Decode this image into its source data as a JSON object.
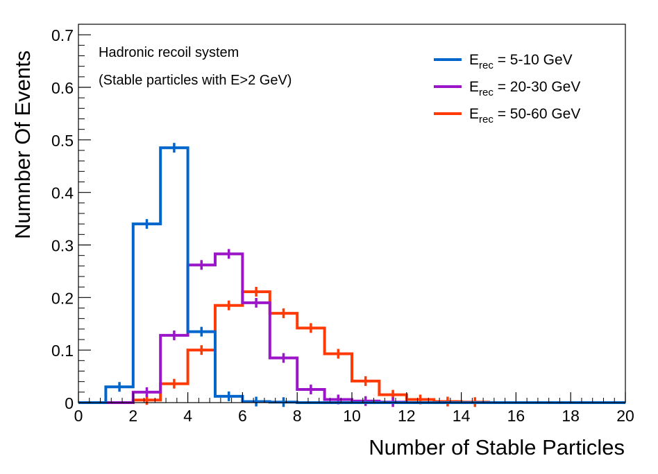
{
  "chart_data": {
    "type": "histogram-step",
    "xlabel": "Number of Stable Particles",
    "ylabel": "Numnber Of Events",
    "xlim": [
      0,
      20
    ],
    "ylim": [
      0,
      0.72
    ],
    "x_ticks": [
      0,
      2,
      4,
      6,
      8,
      10,
      12,
      14,
      16,
      18,
      20
    ],
    "y_ticks": [
      0,
      0.1,
      0.2,
      0.3,
      0.4,
      0.5,
      0.6,
      0.7
    ],
    "y_tick_labels": [
      "0",
      "0.1",
      "0.2",
      "0.3",
      "0.4",
      "0.5",
      "0.6",
      "0.7"
    ],
    "bin_edges": [
      0,
      1,
      2,
      3,
      4,
      5,
      6,
      7,
      8,
      9,
      10,
      11,
      12,
      13,
      14,
      15,
      16,
      17,
      18,
      19,
      20
    ],
    "annotations": [
      "Hadronic recoil system",
      "(Stable particles with E>2 GeV)"
    ],
    "legend_position": "top-right",
    "series": [
      {
        "name": "E_rec = 5-10 GeV",
        "label_main": "E",
        "label_sub": "rec",
        "label_rest": " = 5-10 GeV",
        "color": "#0066cc",
        "values": [
          0,
          0.03,
          0.34,
          0.485,
          0.135,
          0.012,
          0.002,
          0.001,
          0,
          0,
          0,
          0,
          0,
          0,
          0,
          0,
          0,
          0,
          0,
          0
        ],
        "errors": [
          0,
          0.003,
          0.008,
          0.01,
          0.005,
          0.002,
          0,
          0,
          0,
          0,
          0,
          0,
          0,
          0,
          0,
          0,
          0,
          0,
          0,
          0
        ]
      },
      {
        "name": "E_rec = 20-30 GeV",
        "label_main": "E",
        "label_sub": "rec",
        "label_rest": " = 20-30 GeV",
        "color": "#9b16c8",
        "values": [
          0,
          0,
          0.02,
          0.128,
          0.262,
          0.283,
          0.19,
          0.085,
          0.025,
          0.006,
          0.003,
          0.001,
          0,
          0,
          0,
          0,
          0,
          0,
          0,
          0
        ],
        "errors": [
          0,
          0,
          0.003,
          0.006,
          0.008,
          0.008,
          0.007,
          0.004,
          0.002,
          0.001,
          0,
          0,
          0,
          0,
          0,
          0,
          0,
          0,
          0,
          0
        ]
      },
      {
        "name": "E_rec = 50-60 GeV",
        "label_main": "E",
        "label_sub": "rec",
        "label_rest": " = 50-60 GeV",
        "color": "#ff3a05",
        "values": [
          0,
          0,
          0.005,
          0.036,
          0.1,
          0.185,
          0.211,
          0.17,
          0.142,
          0.093,
          0.041,
          0.015,
          0.006,
          0.002,
          0.001,
          0,
          0,
          0,
          0,
          0
        ],
        "errors": [
          0,
          0,
          0.002,
          0.005,
          0.01,
          0.014,
          0.015,
          0.012,
          0.011,
          0.009,
          0.006,
          0.003,
          0.002,
          0.001,
          0,
          0,
          0,
          0,
          0,
          0
        ]
      }
    ]
  }
}
